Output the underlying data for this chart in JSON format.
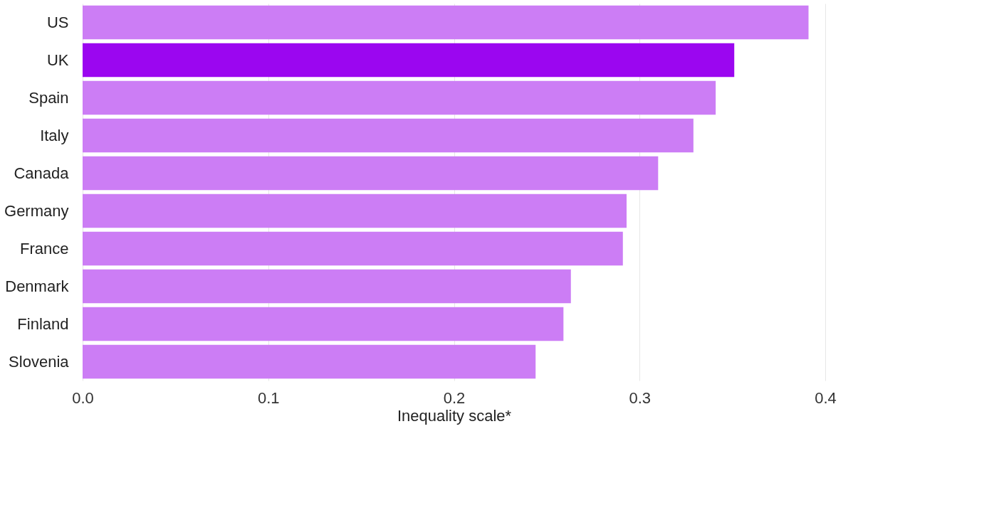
{
  "chart_data": {
    "type": "bar",
    "orientation": "horizontal",
    "xlabel": "Inequality scale*",
    "categories": [
      "US",
      "UK",
      "Spain",
      "Italy",
      "Canada",
      "Germany",
      "France",
      "Denmark",
      "Finland",
      "Slovenia"
    ],
    "values": [
      0.391,
      0.351,
      0.341,
      0.329,
      0.31,
      0.293,
      0.291,
      0.263,
      0.259,
      0.244
    ],
    "colors": [
      "#cc7df5",
      "#9b06f0",
      "#cc7df5",
      "#cc7df5",
      "#cc7df5",
      "#cc7df5",
      "#cc7df5",
      "#cc7df5",
      "#cc7df5",
      "#cc7df5"
    ],
    "xlim": [
      0,
      0.4
    ],
    "xticks": [
      {
        "value": 0,
        "label": "0.0"
      },
      0.1,
      0.2,
      0.3,
      0.4
    ],
    "grid": "x"
  }
}
